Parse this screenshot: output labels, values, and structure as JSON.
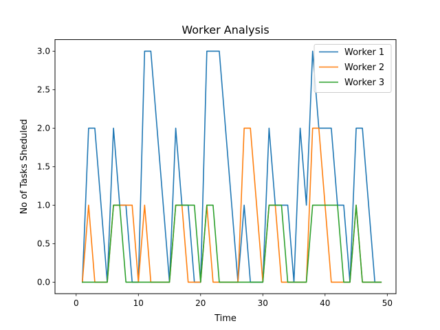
{
  "chart_data": {
    "type": "line",
    "title": "Worker Analysis",
    "xlabel": "Time",
    "ylabel": "No of Tasks Sheduled",
    "xlim": [
      -3.4,
      51.4
    ],
    "ylim": [
      -0.15,
      3.15
    ],
    "xticks": [
      0,
      10,
      20,
      30,
      40,
      50
    ],
    "yticks": [
      0.0,
      0.5,
      1.0,
      1.5,
      2.0,
      2.5,
      3.0
    ],
    "xtick_labels": [
      "0",
      "10",
      "20",
      "30",
      "40",
      "50"
    ],
    "ytick_labels": [
      "0.0",
      "0.5",
      "1.0",
      "1.5",
      "2.0",
      "2.5",
      "3.0"
    ],
    "legend_position": "top-right",
    "series": [
      {
        "name": "Worker 1",
        "color": "#1f77b4",
        "x": [
          1,
          2,
          3,
          4,
          5,
          6,
          7,
          8,
          9,
          10,
          11,
          12,
          13,
          14,
          15,
          16,
          17,
          18,
          19,
          20,
          21,
          22,
          23,
          24,
          25,
          26,
          27,
          28,
          29,
          30,
          31,
          32,
          33,
          34,
          35,
          36,
          37,
          38,
          39,
          40,
          41,
          42,
          43,
          44,
          45,
          46,
          47,
          48,
          49
        ],
        "y": [
          0,
          2,
          2,
          1,
          0,
          2,
          1,
          1,
          0,
          0,
          3,
          3,
          2,
          1,
          0,
          2,
          1,
          1,
          0,
          0,
          3,
          3,
          3,
          2,
          1,
          0,
          1,
          0,
          0,
          0,
          2,
          1,
          1,
          1,
          0,
          2,
          1,
          3,
          2,
          2,
          2,
          1,
          1,
          0,
          2,
          2,
          1,
          0,
          0
        ]
      },
      {
        "name": "Worker 2",
        "color": "#ff7f0e",
        "x": [
          1,
          2,
          3,
          4,
          5,
          6,
          7,
          8,
          9,
          10,
          11,
          12,
          13,
          14,
          15,
          16,
          17,
          18,
          19,
          20,
          21,
          22,
          23,
          24,
          25,
          26,
          27,
          28,
          29,
          30,
          31,
          32,
          33,
          34,
          35,
          36,
          37,
          38,
          39,
          40,
          41,
          42,
          43,
          44,
          45,
          46,
          47,
          48,
          49
        ],
        "y": [
          0,
          1,
          0,
          0,
          0,
          1,
          1,
          1,
          1,
          0,
          1,
          0,
          0,
          0,
          0,
          1,
          1,
          0,
          0,
          0,
          1,
          0,
          0,
          0,
          0,
          0,
          2,
          2,
          1,
          0,
          1,
          1,
          0,
          0,
          0,
          0,
          0,
          2,
          2,
          1,
          0,
          0,
          0,
          0,
          1,
          0,
          0,
          0,
          0
        ]
      },
      {
        "name": "Worker 3",
        "color": "#2ca02c",
        "x": [
          1,
          2,
          3,
          4,
          5,
          6,
          7,
          8,
          9,
          10,
          11,
          12,
          13,
          14,
          15,
          16,
          17,
          18,
          19,
          20,
          21,
          22,
          23,
          24,
          25,
          26,
          27,
          28,
          29,
          30,
          31,
          32,
          33,
          34,
          35,
          36,
          37,
          38,
          39,
          40,
          41,
          42,
          43,
          44,
          45,
          46,
          47,
          48,
          49
        ],
        "y": [
          0,
          0,
          0,
          0,
          0,
          1,
          1,
          0,
          0,
          0,
          0,
          0,
          0,
          0,
          0,
          1,
          1,
          1,
          1,
          0,
          1,
          1,
          0,
          0,
          0,
          0,
          0,
          0,
          0,
          0,
          1,
          1,
          1,
          0,
          0,
          0,
          0,
          1,
          1,
          1,
          1,
          1,
          0,
          0,
          1,
          0,
          0,
          0,
          0
        ]
      }
    ]
  }
}
